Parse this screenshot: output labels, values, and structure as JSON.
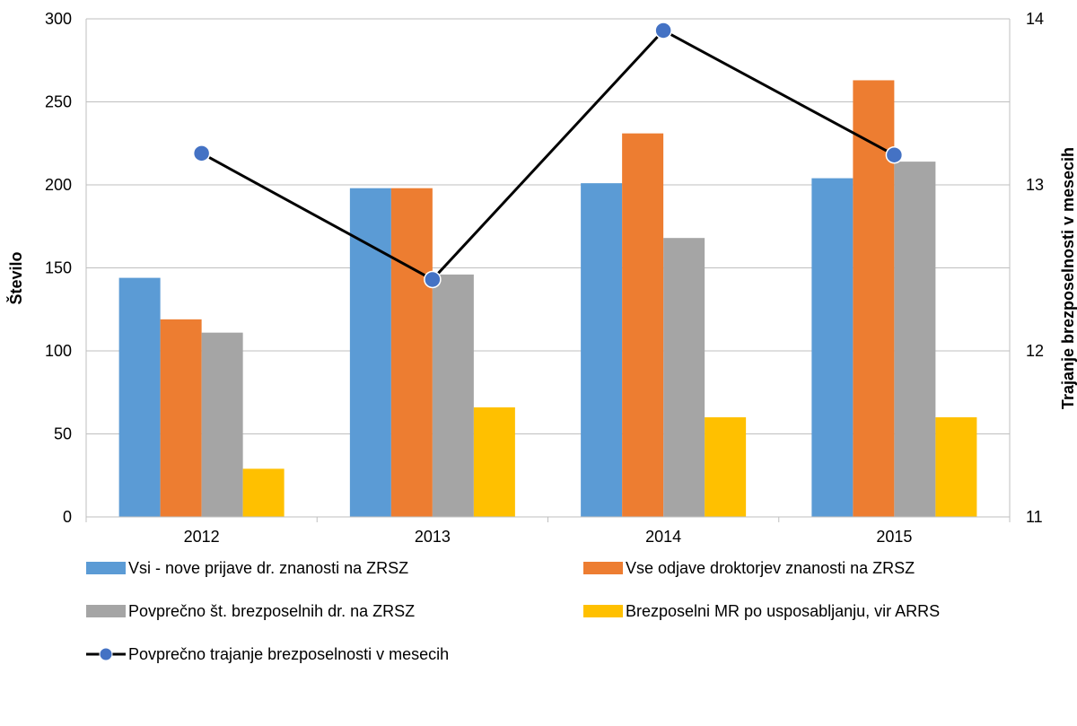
{
  "chart_data": {
    "type": "bar",
    "categories": [
      "2012",
      "2013",
      "2014",
      "2015"
    ],
    "series": [
      {
        "name": "Vsi - nove prijave dr. znanosti na ZRSZ",
        "values": [
          144,
          198,
          201,
          204
        ],
        "color": "#5B9BD5",
        "axis": "left",
        "kind": "bar"
      },
      {
        "name": "Vse odjave droktorjev znanosti na ZRSZ",
        "values": [
          119,
          198,
          231,
          263
        ],
        "color": "#ED7D31",
        "axis": "left",
        "kind": "bar"
      },
      {
        "name": "Povprečno št. brezposelnih dr. na ZRSZ",
        "values": [
          111,
          146,
          168,
          214
        ],
        "color": "#A5A5A5",
        "axis": "left",
        "kind": "bar"
      },
      {
        "name": "Brezposelni MR po usposabljanju, vir ARRS",
        "values": [
          29,
          66,
          60,
          60
        ],
        "color": "#FFC000",
        "axis": "left",
        "kind": "bar"
      },
      {
        "name": "Povprečno trajanje brezposelnosti v mesecih",
        "values": [
          13.19,
          12.43,
          13.93,
          13.18
        ],
        "color": "#000000",
        "marker_color": "#4472C4",
        "axis": "right",
        "kind": "line"
      }
    ],
    "ylabel": "Število",
    "y2label": "Trajanje brezposelnosti v mesecih",
    "ylim": [
      0,
      300
    ],
    "yticks": [
      "0",
      "50",
      "100",
      "150",
      "200",
      "250",
      "300"
    ],
    "y2lim": [
      11,
      14
    ],
    "y2ticks": [
      "11",
      "12",
      "13",
      "14"
    ],
    "grid": true,
    "legend_position": "bottom"
  }
}
